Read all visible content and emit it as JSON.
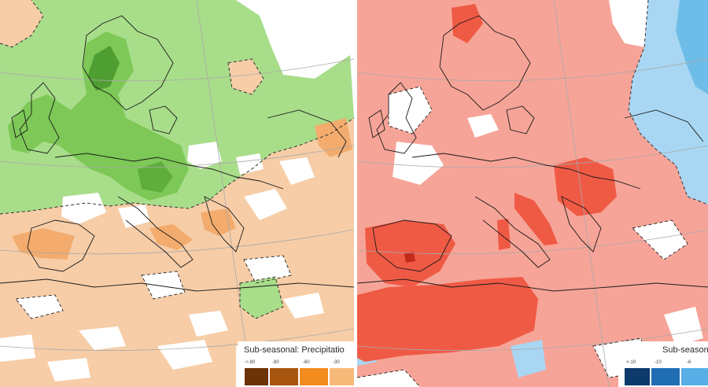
{
  "left_map": {
    "legend_title": "Sub-seasonal: Precipitatio",
    "legend_ticks": [
      "<-90",
      "-90",
      "-60",
      "-30"
    ],
    "legend_colors": [
      "#6b3306",
      "#a8550f",
      "#f28c1e",
      "#f7b978"
    ],
    "palette": {
      "wet": "#a8dd8a",
      "wet_strong": "#7dc856",
      "wet_max": "#4f9e31",
      "dry": "#f6cda7",
      "dry_strong": "#f3ac6e",
      "neutral": "#ffffff"
    }
  },
  "right_map": {
    "legend_title": "Sub-season",
    "legend_ticks": [
      "<-10",
      "-10",
      "-6"
    ],
    "legend_colors": [
      "#0b3a6b",
      "#1f6db3",
      "#58aee6"
    ],
    "palette": {
      "warm": "#f6a497",
      "warm_strong": "#ef5a45",
      "warm_max": "#c42a1c",
      "cool": "#a9d7f3",
      "cool_strong": "#6ebde9",
      "neutral": "#ffffff"
    }
  },
  "icons": {
    "coastline": "coastline-lines",
    "graticule": "graticule-lines"
  }
}
